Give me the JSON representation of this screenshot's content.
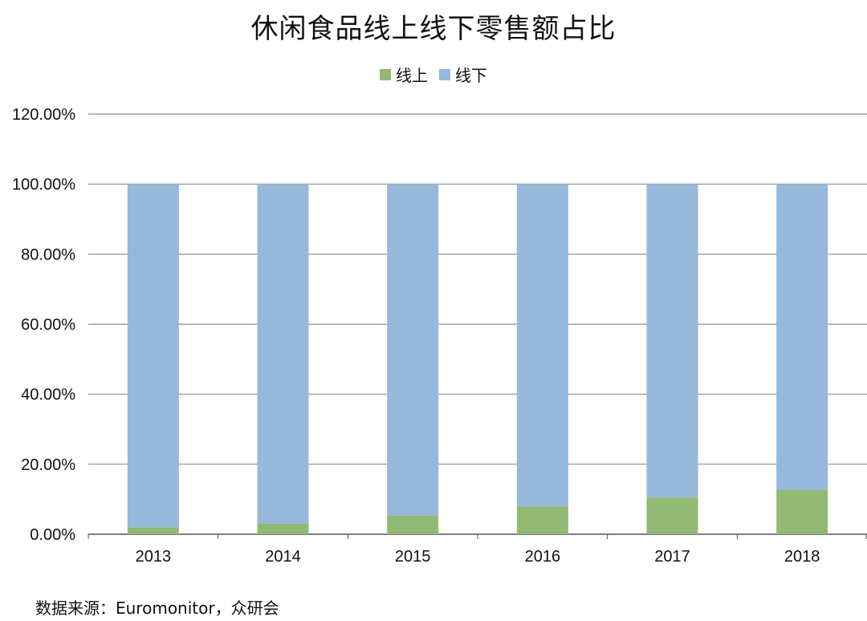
{
  "chart_data": {
    "type": "bar",
    "stacked": true,
    "title": "休闲食品线上线下零售额占比",
    "categories": [
      "2013",
      "2014",
      "2015",
      "2016",
      "2017",
      "2018"
    ],
    "series": [
      {
        "name": "线上",
        "color": "#92b973",
        "values": [
          2.0,
          3.0,
          5.3,
          8.0,
          10.5,
          12.7
        ]
      },
      {
        "name": "线下",
        "color": "#95b8db",
        "values": [
          98.0,
          97.0,
          94.7,
          92.0,
          89.5,
          87.3
        ]
      }
    ],
    "ylim": [
      0,
      120
    ],
    "yticks": [
      0,
      20,
      40,
      60,
      80,
      100,
      120
    ],
    "ytick_labels": [
      "0.00%",
      "20.00%",
      "40.00%",
      "60.00%",
      "80.00%",
      "100.00%",
      "120.00%"
    ],
    "grid": true,
    "legend_position": "top-center",
    "xlabel": "",
    "ylabel": ""
  },
  "source_note": "数据来源：Euromonitor，众研会"
}
